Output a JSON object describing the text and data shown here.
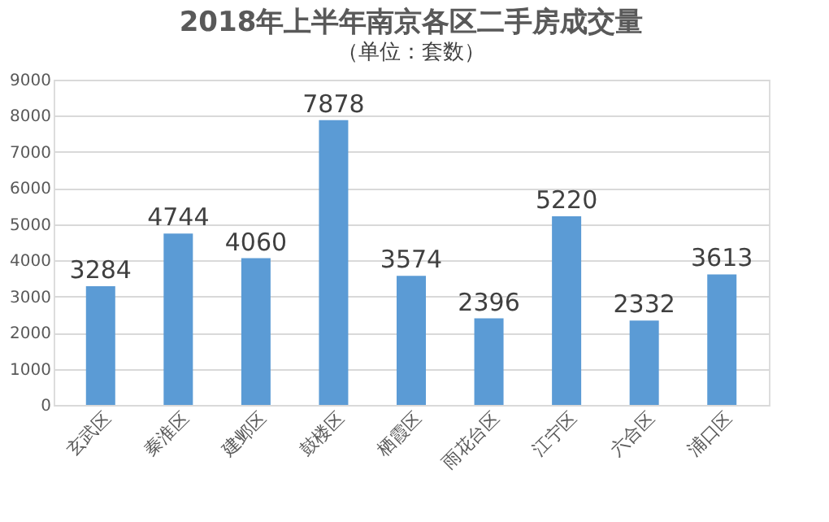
{
  "chart_data": {
    "type": "bar",
    "title": "2018年上半年南京各区二手房成交量",
    "subtitle": "（单位：套数）",
    "categories": [
      "玄武区",
      "秦淮区",
      "建邺区",
      "鼓楼区",
      "栖霞区",
      "雨花台区",
      "江宁区",
      "六合区",
      "浦口区"
    ],
    "values": [
      3284,
      4744,
      4060,
      7878,
      3574,
      2396,
      5220,
      2332,
      3613
    ],
    "color": "#5b9bd5",
    "ylim": [
      0,
      9000
    ],
    "yticks": [
      0,
      1000,
      2000,
      3000,
      4000,
      5000,
      6000,
      7000,
      8000,
      9000
    ],
    "grid": "y",
    "data_labels": true
  }
}
